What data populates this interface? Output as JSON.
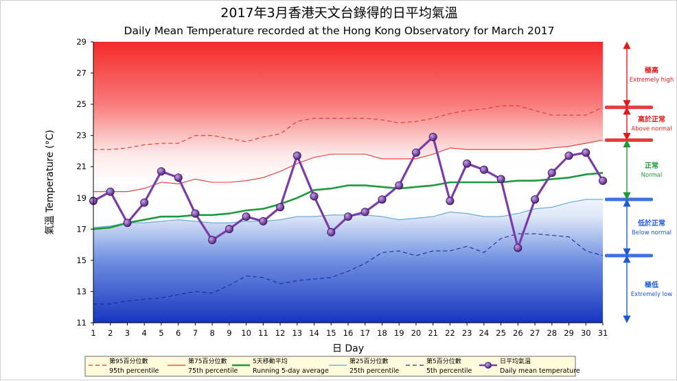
{
  "chart_data": {
    "type": "line",
    "title_zh": "2017年3月香港天文台錄得的日平均氣溫",
    "title": "Daily Mean Temperature recorded at the Hong Kong Observatory for March 2017",
    "xlabel": "日 Day",
    "ylabel": "氣溫 Temperature (°C)",
    "xlim": [
      1,
      31
    ],
    "ylim": [
      11,
      29
    ],
    "xticks": [
      1,
      2,
      3,
      4,
      5,
      6,
      7,
      8,
      9,
      10,
      11,
      12,
      13,
      14,
      15,
      16,
      17,
      18,
      19,
      20,
      21,
      22,
      23,
      24,
      25,
      26,
      27,
      28,
      29,
      30,
      31
    ],
    "yticks": [
      11,
      13,
      15,
      17,
      19,
      21,
      23,
      25,
      27,
      29
    ],
    "x": [
      1,
      2,
      3,
      4,
      5,
      6,
      7,
      8,
      9,
      10,
      11,
      12,
      13,
      14,
      15,
      16,
      17,
      18,
      19,
      20,
      21,
      22,
      23,
      24,
      25,
      26,
      27,
      28,
      29,
      30,
      31
    ],
    "series": [
      {
        "name": "第95百分位數 95th percentile",
        "key": "p95",
        "color": "#e8332a",
        "dash": "6,4",
        "values": [
          22.1,
          22.1,
          22.2,
          22.4,
          22.5,
          22.5,
          23.0,
          23.0,
          22.8,
          22.6,
          22.9,
          23.1,
          23.9,
          24.1,
          24.1,
          24.1,
          24.1,
          24.0,
          23.8,
          23.9,
          24.1,
          24.4,
          24.6,
          24.7,
          24.9,
          24.9,
          24.6,
          24.3,
          24.3,
          24.3,
          24.8
        ]
      },
      {
        "name": "第75百分位數 75th percentile",
        "key": "p75",
        "color": "#e8332a",
        "dash": "",
        "values": [
          19.4,
          19.4,
          19.4,
          19.6,
          20.0,
          19.9,
          20.2,
          20.0,
          20.0,
          20.1,
          20.3,
          20.7,
          21.2,
          21.6,
          21.8,
          21.8,
          21.8,
          21.5,
          21.5,
          21.5,
          21.8,
          22.2,
          22.1,
          22.1,
          22.1,
          22.1,
          22.1,
          22.2,
          22.3,
          22.5,
          22.7
        ]
      },
      {
        "name": "5天移動平均 Running 5-day average",
        "key": "avg5",
        "color": "#1a9a3a",
        "dash": "",
        "values": [
          17.0,
          17.1,
          17.4,
          17.6,
          17.8,
          17.8,
          17.9,
          17.9,
          18.0,
          18.2,
          18.3,
          18.6,
          19.0,
          19.5,
          19.6,
          19.8,
          19.8,
          19.7,
          19.6,
          19.7,
          19.8,
          20.0,
          20.0,
          20.0,
          20.0,
          20.1,
          20.1,
          20.2,
          20.3,
          20.5,
          20.6
        ]
      },
      {
        "name": "第25百分位數 25th percentile",
        "key": "p25",
        "color": "#5aa6d6",
        "dash": "",
        "values": [
          17.1,
          17.2,
          17.4,
          17.4,
          17.5,
          17.6,
          17.5,
          17.4,
          17.4,
          17.5,
          17.5,
          17.6,
          17.8,
          17.8,
          17.9,
          17.9,
          17.9,
          17.8,
          17.6,
          17.7,
          17.8,
          18.1,
          18.0,
          17.8,
          17.8,
          18.0,
          18.3,
          18.4,
          18.7,
          18.9,
          18.9
        ]
      },
      {
        "name": "第5百分位數 5th percentile",
        "key": "p5",
        "color": "#1a2a9a",
        "dash": "6,4",
        "values": [
          12.2,
          12.2,
          12.4,
          12.5,
          12.6,
          12.8,
          13.0,
          12.9,
          13.4,
          14.0,
          13.9,
          13.5,
          13.7,
          13.8,
          13.9,
          14.3,
          14.8,
          15.5,
          15.6,
          15.3,
          15.6,
          15.6,
          15.9,
          15.5,
          16.4,
          16.7,
          16.7,
          16.6,
          16.5,
          15.6,
          15.3
        ]
      },
      {
        "name": "日平均氣溫 Daily mean temperature",
        "key": "daily",
        "color": "#7a3aa8",
        "dash": "",
        "values": [
          18.8,
          19.4,
          17.4,
          18.7,
          20.7,
          20.3,
          18.0,
          16.3,
          17.0,
          17.8,
          17.5,
          18.4,
          21.7,
          19.1,
          16.8,
          17.8,
          18.1,
          18.9,
          19.8,
          21.9,
          22.9,
          18.8,
          21.2,
          20.8,
          20.2,
          15.8,
          18.9,
          20.6,
          21.7,
          21.9,
          20.1
        ]
      }
    ],
    "legend_position": "bottom",
    "bands": [
      {
        "zh": "極高",
        "en": "Extremely high",
        "color": "#e01a1a"
      },
      {
        "zh": "高於正常",
        "en": "Above normal",
        "color": "#e01a1a"
      },
      {
        "zh": "正常",
        "en": "Normal",
        "color": "#1a9a3a"
      },
      {
        "zh": "低於正常",
        "en": "Below normal",
        "color": "#1a5ad6"
      },
      {
        "zh": "極低",
        "en": "Extremely low",
        "color": "#1a5ad6"
      }
    ],
    "grid": false
  }
}
